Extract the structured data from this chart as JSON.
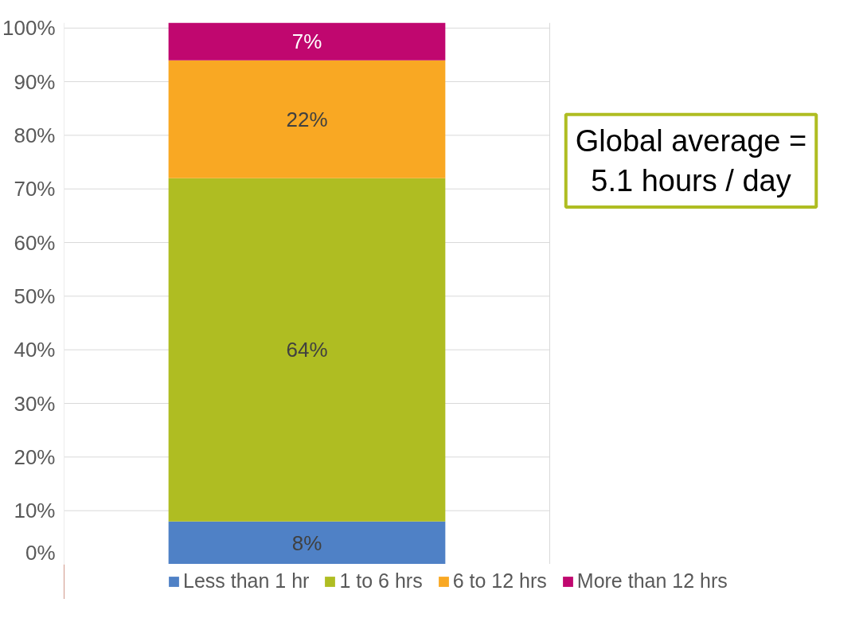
{
  "chart_data": {
    "type": "bar",
    "stacked": true,
    "categories": [
      null
    ],
    "series": [
      {
        "name": "Less than 1 hr",
        "color": "#4f81c6",
        "values": [
          8
        ],
        "value_labels": [
          "8%"
        ]
      },
      {
        "name": "1 to 6 hrs",
        "color": "#afbd22",
        "values": [
          64
        ],
        "value_labels": [
          "64%"
        ]
      },
      {
        "name": "6 to 12 hrs",
        "color": "#f9a823",
        "values": [
          22
        ],
        "value_labels": [
          "22%"
        ]
      },
      {
        "name": "More than 12 hrs",
        "color": "#c0076f",
        "values": [
          7
        ],
        "value_labels": [
          "7%"
        ]
      }
    ],
    "ylim": [
      0,
      101
    ],
    "yticks": [
      {
        "value": 0,
        "label": "0%"
      },
      {
        "value": 10,
        "label": "10%"
      },
      {
        "value": 20,
        "label": "20%"
      },
      {
        "value": 30,
        "label": "30%"
      },
      {
        "value": 40,
        "label": "40%"
      },
      {
        "value": 50,
        "label": "50%"
      },
      {
        "value": 60,
        "label": "60%"
      },
      {
        "value": 70,
        "label": "70%"
      },
      {
        "value": 80,
        "label": "80%"
      },
      {
        "value": 90,
        "label": "90%"
      },
      {
        "value": 100,
        "label": "100%"
      }
    ],
    "grid": "y",
    "legend": "bottom",
    "annotations": [
      "Global average =\n5.1 hours / day"
    ]
  }
}
